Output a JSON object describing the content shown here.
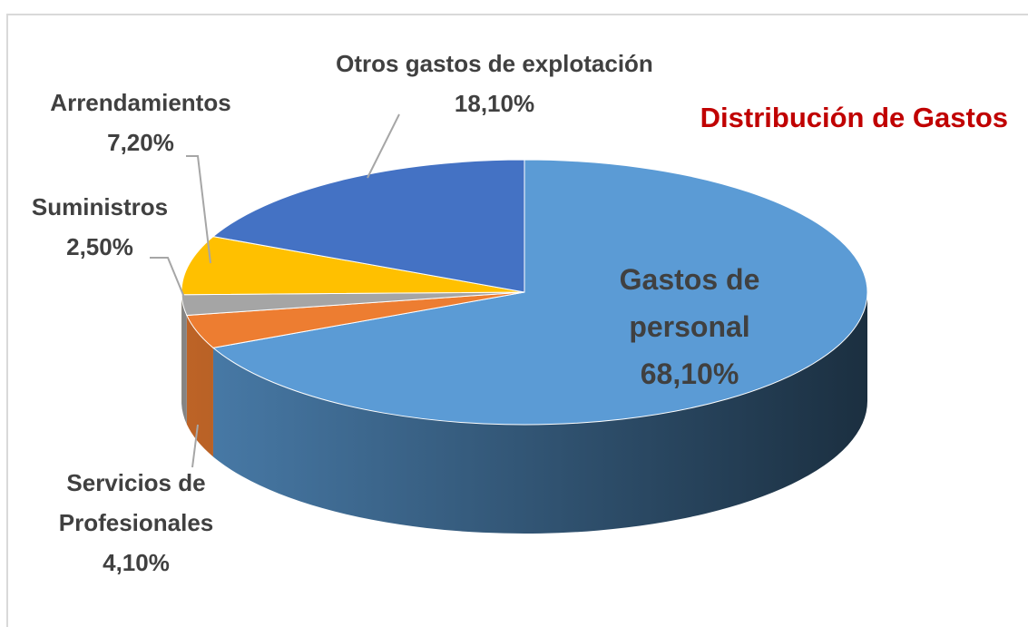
{
  "chart_data": {
    "type": "pie3d",
    "title": "Distribución de Gastos",
    "categories": [
      "Gastos de personal",
      "Servicios de Profesionales",
      "Suministros",
      "Arrendamientos",
      "Otros gastos de explotación"
    ],
    "values": [
      68.1,
      4.1,
      2.5,
      7.2,
      18.1
    ],
    "value_labels": [
      "68,10%",
      "4,10%",
      "2,50%",
      "7,20%",
      "18,10%"
    ],
    "colors": [
      "#5b9bd5",
      "#ed7d31",
      "#a5a5a5",
      "#ffc000",
      "#4472c4"
    ]
  }
}
